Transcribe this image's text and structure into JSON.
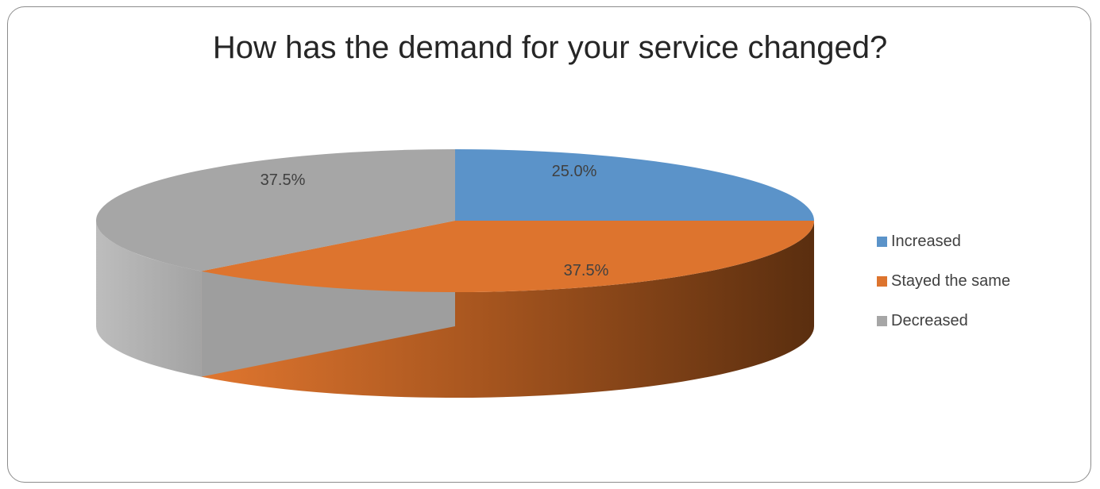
{
  "chart_data": {
    "type": "pie",
    "title": "How has the demand for your service changed?",
    "categories": [
      "Increased",
      "Stayed the same",
      "Decreased"
    ],
    "values": [
      25.0,
      37.5,
      37.5
    ],
    "data_labels": [
      "25.0%",
      "37.5%",
      "37.5%"
    ],
    "colors": [
      "#5b93c9",
      "#dd742e",
      "#a6a6a6"
    ],
    "style": "3d-tilted",
    "legend_position": "right"
  }
}
